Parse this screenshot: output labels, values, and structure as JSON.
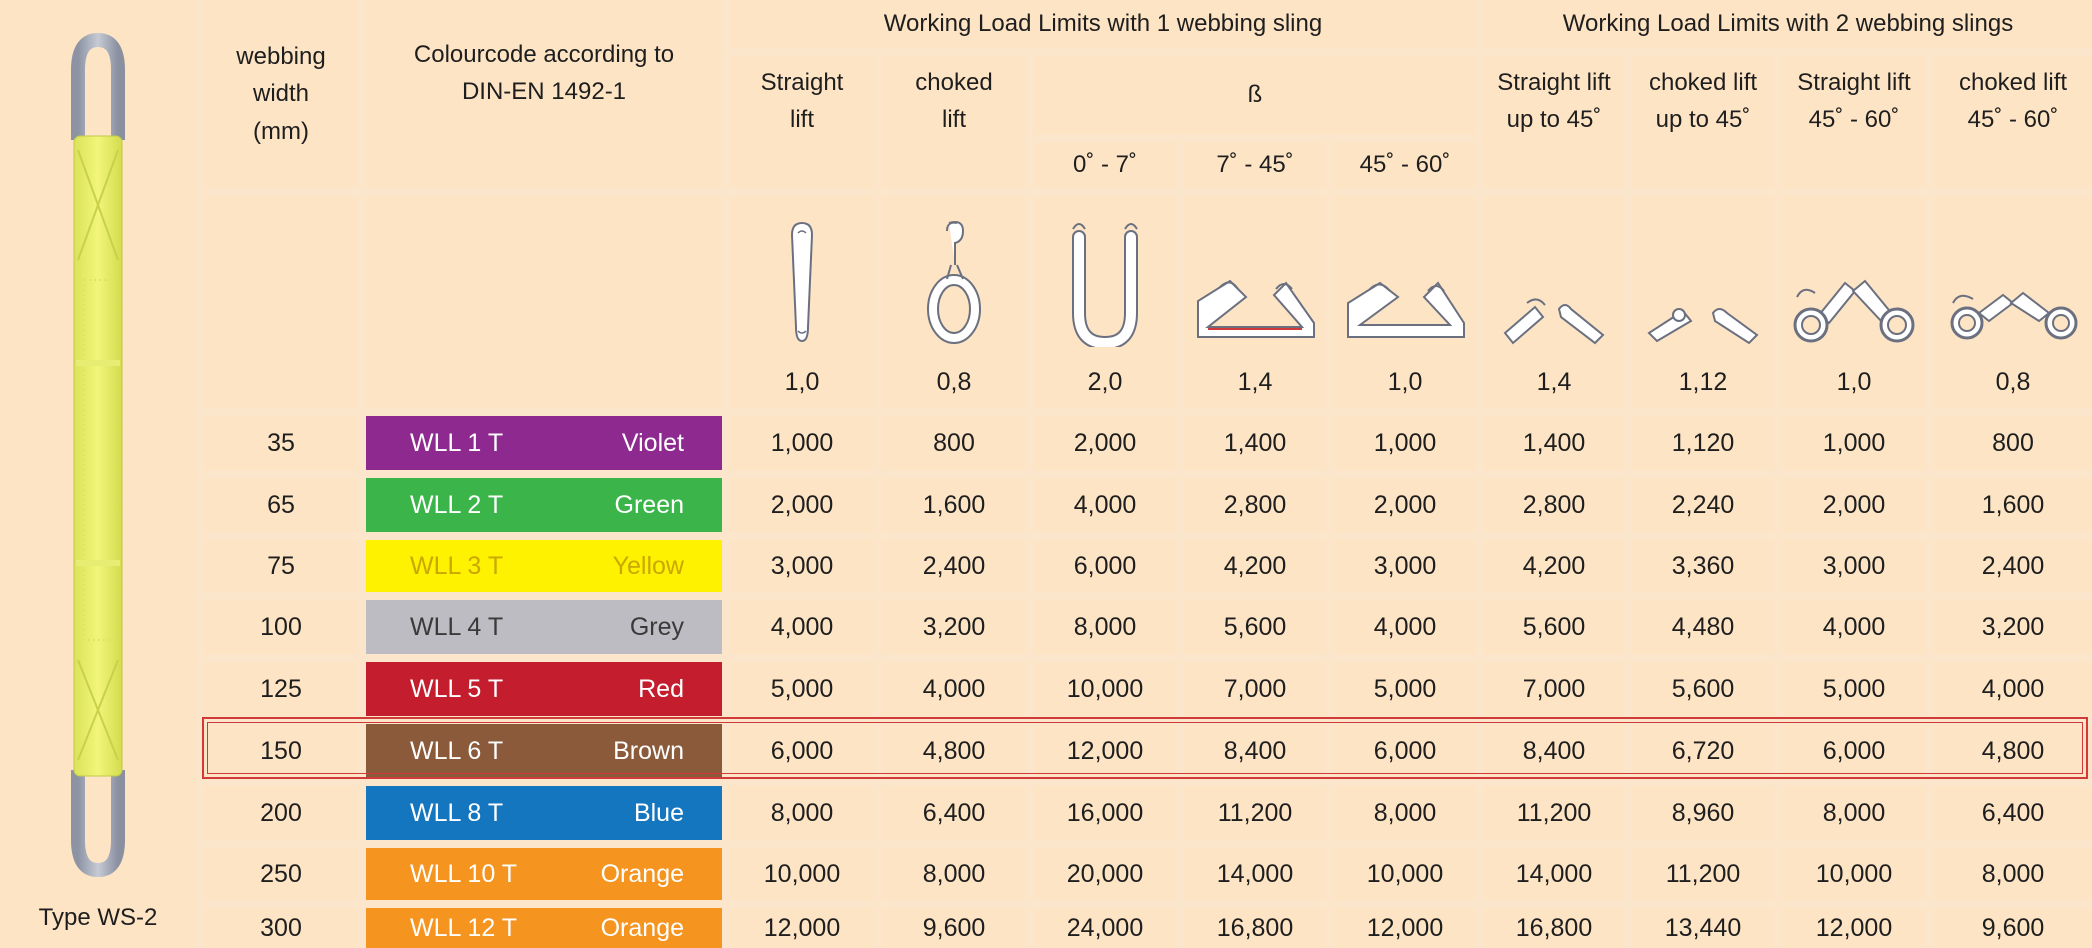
{
  "product": {
    "type_label": "Type WS-2"
  },
  "headers": {
    "webbing_width": "webbing\nwidth\n(mm)",
    "colourcode": "Colourcode according to\nDIN-EN 1492-1",
    "group_one": "Working Load Limits with 1 webbing sling",
    "group_two": "Working Load Limits with 2 webbing slings",
    "straight_lift": "Straight\nlift",
    "choked_lift": "choked\nlift",
    "beta": "ß",
    "angle_0_7": "0˚ - 7˚",
    "angle_7_45": "7˚ - 45˚",
    "angle_45_60": "45˚ - 60˚",
    "two_straight_45": "Straight lift\nup to 45˚",
    "two_choked_45": "choked lift\nup to 45˚",
    "two_straight_45_60": "Straight lift\n45˚ - 60˚",
    "two_choked_45_60": "choked lift\n45˚ - 60˚"
  },
  "factors": [
    "1,0",
    "0,8",
    "2,0",
    "1,4",
    "1,0",
    "1,4",
    "1,12",
    "1,0",
    "0,8"
  ],
  "symbols": [
    "straight-lift-sling-icon",
    "choked-lift-sling-icon",
    "basket-0-7-sling-icon",
    "basket-7-45-sling-icon",
    "basket-45-60-sling-icon",
    "two-leg-straight-45-icon",
    "two-leg-choked-45-icon",
    "two-leg-straight-45-60-icon",
    "two-leg-choked-45-60-icon"
  ],
  "rows": [
    {
      "width": "35",
      "wll": "WLL 1 T",
      "colour": "Violet",
      "color_hex": "#8e2a8f",
      "values": [
        "1,000",
        "800",
        "2,000",
        "1,400",
        "1,000",
        "1,400",
        "1,120",
        "1,000",
        "800"
      ]
    },
    {
      "width": "65",
      "wll": "WLL 2 T",
      "colour": "Green",
      "color_hex": "#3bb54a",
      "values": [
        "2,000",
        "1,600",
        "4,000",
        "2,800",
        "2,000",
        "2,800",
        "2,240",
        "2,000",
        "1,600"
      ]
    },
    {
      "width": "75",
      "wll": "WLL 3 T",
      "colour": "Yellow",
      "color_hex": "#fff200",
      "values": [
        "3,000",
        "2,400",
        "6,000",
        "4,200",
        "3,000",
        "4,200",
        "3,360",
        "3,000",
        "2,400"
      ]
    },
    {
      "width": "100",
      "wll": "WLL 4 T",
      "colour": "Grey",
      "color_hex": "#bcbcc2",
      "values": [
        "4,000",
        "3,200",
        "8,000",
        "5,600",
        "4,000",
        "5,600",
        "4,480",
        "4,000",
        "3,200"
      ]
    },
    {
      "width": "125",
      "wll": "WLL 5 T",
      "colour": "Red",
      "color_hex": "#c41e2e",
      "values": [
        "5,000",
        "4,000",
        "10,000",
        "7,000",
        "5,000",
        "7,000",
        "5,600",
        "5,000",
        "4,000"
      ]
    },
    {
      "width": "150",
      "wll": "WLL 6 T",
      "colour": "Brown",
      "color_hex": "#8a5a3a",
      "values": [
        "6,000",
        "4,800",
        "12,000",
        "8,400",
        "6,000",
        "8,400",
        "6,720",
        "6,000",
        "4,800"
      ],
      "highlighted": true
    },
    {
      "width": "200",
      "wll": "WLL 8 T",
      "colour": "Blue",
      "color_hex": "#1576c0",
      "values": [
        "8,000",
        "6,400",
        "16,000",
        "11,200",
        "8,000",
        "11,200",
        "8,960",
        "8,000",
        "6,400"
      ]
    },
    {
      "width": "250",
      "wll": "WLL 10 T",
      "colour": "Orange",
      "color_hex": "#f5941f",
      "values": [
        "10,000",
        "8,000",
        "20,000",
        "14,000",
        "10,000",
        "14,000",
        "11,200",
        "10,000",
        "8,000"
      ]
    },
    {
      "width": "300",
      "wll": "WLL 12 T",
      "colour": "Orange",
      "color_hex": "#f5941f",
      "values": [
        "12,000",
        "9,600",
        "24,000",
        "16,800",
        "12,000",
        "16,800",
        "13,440",
        "12,000",
        "9,600"
      ]
    }
  ]
}
